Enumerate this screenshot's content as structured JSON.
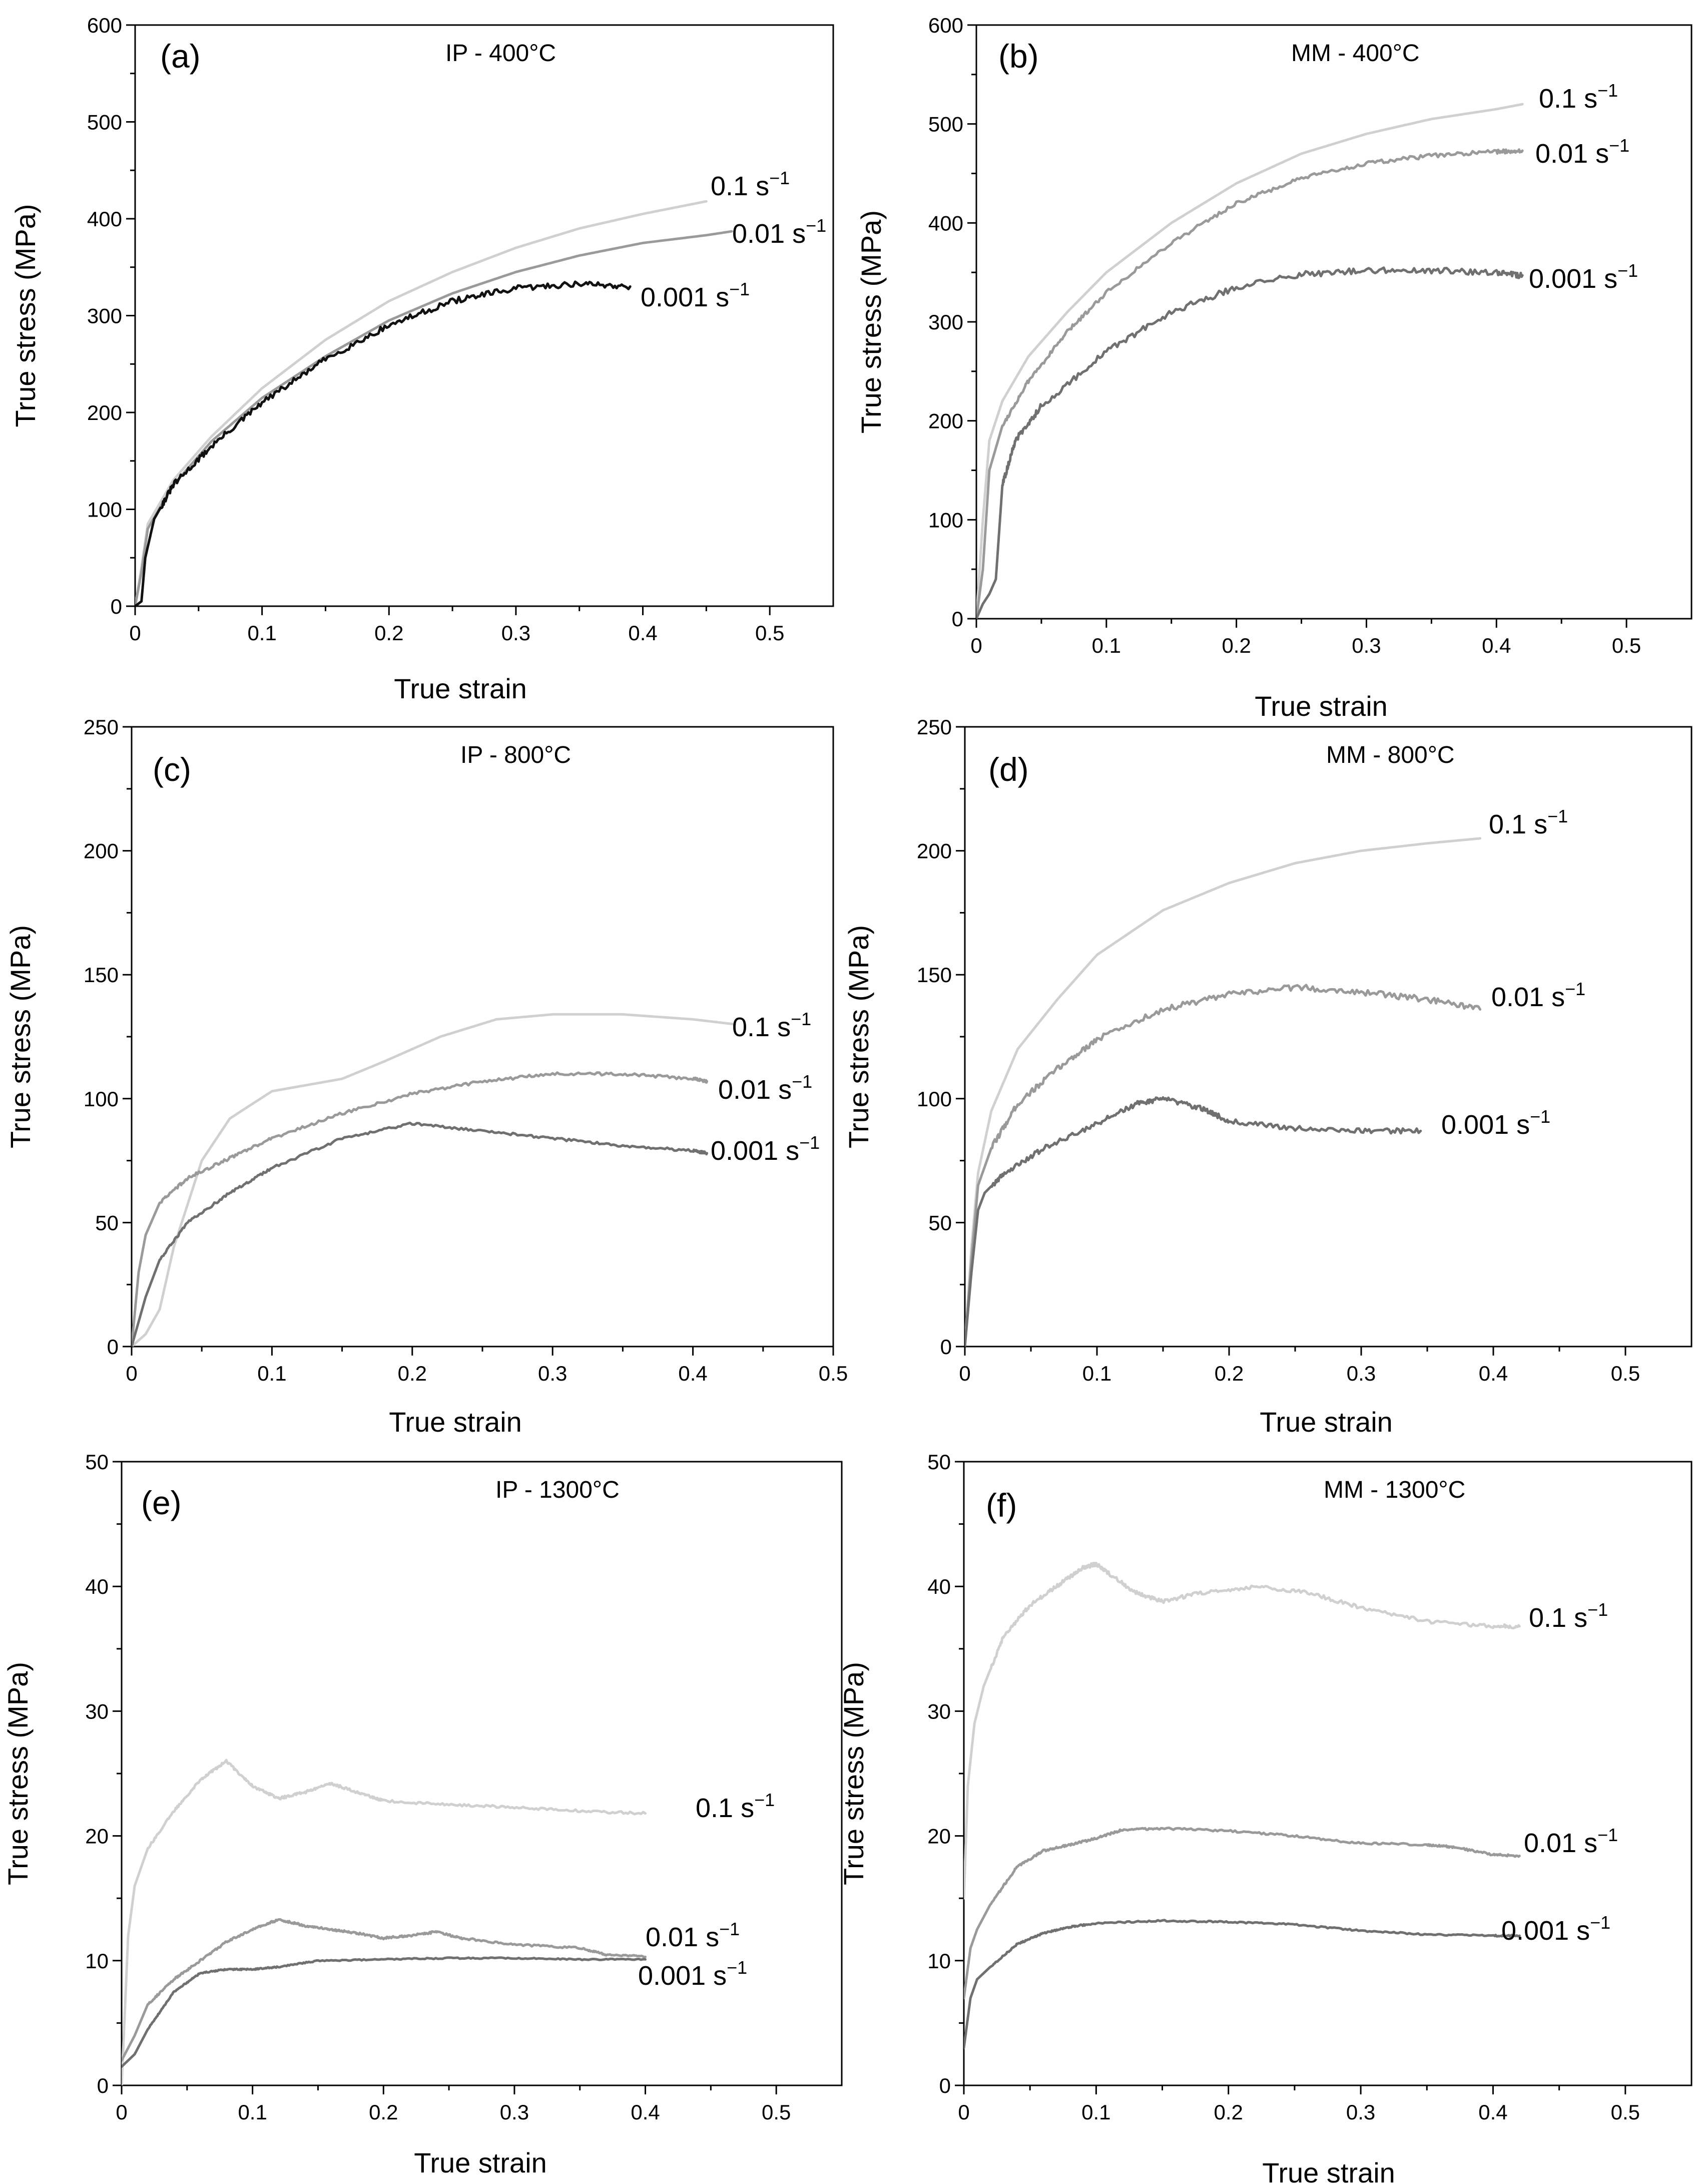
{
  "chart_data": [
    {
      "id": "a",
      "type": "line",
      "panel_label": "(a)",
      "title": "IP - 400°C",
      "xlabel": "True strain",
      "ylabel": "True stress (MPa)",
      "xlim": [
        0,
        0.55
      ],
      "ylim": [
        0,
        600
      ],
      "xticks": [
        0,
        0.1,
        0.2,
        0.3,
        0.4,
        0.5
      ],
      "yticks": [
        0,
        100,
        200,
        300,
        400,
        500,
        600
      ],
      "xtick_labels": [
        "0",
        "0.1",
        "0.2",
        "0.3",
        "0.4",
        "0.5"
      ],
      "ytick_labels": [
        "0",
        "100",
        "200",
        "300",
        "400",
        "500",
        "600"
      ],
      "series": [
        {
          "name": "0.1 s",
          "exp": "−1",
          "color": "#d0d0d0",
          "noise": 0,
          "x": [
            0,
            0.005,
            0.01,
            0.03,
            0.06,
            0.1,
            0.15,
            0.2,
            0.25,
            0.3,
            0.35,
            0.4,
            0.45
          ],
          "y": [
            0,
            40,
            85,
            130,
            175,
            225,
            275,
            315,
            345,
            370,
            390,
            405,
            418
          ]
        },
        {
          "name": "0.01 s",
          "exp": "−1",
          "color": "#9a9a9a",
          "noise": 0,
          "x": [
            0,
            0.005,
            0.01,
            0.03,
            0.06,
            0.1,
            0.15,
            0.2,
            0.25,
            0.3,
            0.35,
            0.4,
            0.45,
            0.47
          ],
          "y": [
            0,
            35,
            80,
            125,
            170,
            215,
            258,
            295,
            323,
            345,
            362,
            375,
            383,
            387
          ]
        },
        {
          "name": "0.001 s",
          "exp": "−1",
          "color": "#111111",
          "noise": 3,
          "x": [
            0,
            0.005,
            0.008,
            0.015,
            0.03,
            0.06,
            0.1,
            0.15,
            0.2,
            0.25,
            0.3,
            0.35,
            0.39
          ],
          "y": [
            0,
            5,
            50,
            90,
            125,
            165,
            210,
            255,
            290,
            315,
            328,
            333,
            330
          ]
        }
      ]
    },
    {
      "id": "b",
      "type": "line",
      "panel_label": "(b)",
      "title": "MM - 400°C",
      "xlabel": "True strain",
      "ylabel": "True stress (MPa)",
      "xlim": [
        0,
        0.55
      ],
      "ylim": [
        0,
        600
      ],
      "xticks": [
        0,
        0.1,
        0.2,
        0.3,
        0.4,
        0.5
      ],
      "yticks": [
        0,
        100,
        200,
        300,
        400,
        500,
        600
      ],
      "xtick_labels": [
        "0",
        "0.1",
        "0.2",
        "0.3",
        "0.4",
        "0.5"
      ],
      "ytick_labels": [
        "0",
        "100",
        "200",
        "300",
        "400",
        "500",
        "600"
      ],
      "series": [
        {
          "name": "0.1 s",
          "exp": "−1",
          "color": "#d0d0d0",
          "noise": 0,
          "x": [
            0,
            0.005,
            0.01,
            0.02,
            0.04,
            0.07,
            0.1,
            0.15,
            0.2,
            0.25,
            0.3,
            0.35,
            0.4,
            0.42
          ],
          "y": [
            0,
            100,
            180,
            220,
            265,
            310,
            350,
            400,
            440,
            470,
            490,
            505,
            515,
            520
          ]
        },
        {
          "name": "0.01 s",
          "exp": "−1",
          "color": "#9a9a9a",
          "noise": 2,
          "x": [
            0,
            0.005,
            0.01,
            0.02,
            0.04,
            0.07,
            0.1,
            0.15,
            0.2,
            0.25,
            0.3,
            0.35,
            0.4,
            0.42
          ],
          "y": [
            0,
            50,
            150,
            195,
            240,
            290,
            330,
            380,
            420,
            445,
            460,
            468,
            472,
            473
          ]
        },
        {
          "name": "0.001 s",
          "exp": "−1",
          "color": "#707070",
          "noise": 3,
          "x": [
            0,
            0.005,
            0.01,
            0.015,
            0.02,
            0.03,
            0.05,
            0.1,
            0.15,
            0.2,
            0.25,
            0.3,
            0.35,
            0.4,
            0.42
          ],
          "y": [
            0,
            15,
            25,
            40,
            135,
            180,
            215,
            270,
            310,
            335,
            348,
            352,
            352,
            350,
            347
          ]
        }
      ]
    },
    {
      "id": "c",
      "type": "line",
      "panel_label": "(c)",
      "title": "IP - 800°C",
      "xlabel": "True strain",
      "ylabel": "True stress (MPa)",
      "xlim": [
        0,
        0.5
      ],
      "ylim": [
        0,
        250
      ],
      "xticks": [
        0,
        0.1,
        0.2,
        0.3,
        0.4,
        0.5
      ],
      "yticks": [
        0,
        50,
        100,
        150,
        200,
        250
      ],
      "xtick_labels": [
        "0",
        "0.1",
        "0.2",
        "0.3",
        "0.4",
        "0.5"
      ],
      "ytick_labels": [
        "0",
        "50",
        "100",
        "150",
        "200",
        "250"
      ],
      "series": [
        {
          "name": "0.1 s",
          "exp": "−1",
          "color": "#d0d0d0",
          "noise": 0,
          "x": [
            0,
            0.01,
            0.02,
            0.03,
            0.05,
            0.07,
            0.1,
            0.13,
            0.15,
            0.18,
            0.22,
            0.26,
            0.3,
            0.35,
            0.4,
            0.43
          ],
          "y": [
            0,
            5,
            15,
            40,
            75,
            92,
            103,
            106,
            108,
            115,
            125,
            132,
            134,
            134,
            132,
            130
          ]
        },
        {
          "name": "0.01 s",
          "exp": "−1",
          "color": "#9a9a9a",
          "noise": 0.6,
          "x": [
            0,
            0.005,
            0.01,
            0.02,
            0.04,
            0.07,
            0.1,
            0.15,
            0.2,
            0.25,
            0.3,
            0.35,
            0.4,
            0.41
          ],
          "y": [
            0,
            30,
            45,
            58,
            68,
            76,
            84,
            94,
            102,
            107,
            110,
            110,
            108,
            107
          ]
        },
        {
          "name": "0.001 s",
          "exp": "−1",
          "color": "#707070",
          "noise": 0.5,
          "x": [
            0,
            0.005,
            0.01,
            0.02,
            0.04,
            0.07,
            0.1,
            0.15,
            0.2,
            0.25,
            0.3,
            0.35,
            0.4,
            0.41
          ],
          "y": [
            0,
            10,
            20,
            35,
            50,
            62,
            72,
            84,
            90,
            87,
            84,
            81,
            79,
            78
          ]
        }
      ]
    },
    {
      "id": "d",
      "type": "line",
      "panel_label": "(d)",
      "title": "MM - 800°C",
      "xlabel": "True strain",
      "ylabel": "True stress (MPa)",
      "xlim": [
        0,
        0.55
      ],
      "ylim": [
        0,
        250
      ],
      "xticks": [
        0,
        0.1,
        0.2,
        0.3,
        0.4,
        0.5
      ],
      "yticks": [
        0,
        50,
        100,
        150,
        200,
        250
      ],
      "xtick_labels": [
        "0",
        "0.1",
        "0.2",
        "0.3",
        "0.4",
        "0.5"
      ],
      "ytick_labels": [
        "0",
        "50",
        "100",
        "150",
        "200",
        "250"
      ],
      "series": [
        {
          "name": "0.1 s",
          "exp": "−1",
          "color": "#d0d0d0",
          "noise": 0,
          "x": [
            0,
            0.005,
            0.01,
            0.02,
            0.04,
            0.07,
            0.1,
            0.15,
            0.2,
            0.25,
            0.3,
            0.35,
            0.39
          ],
          "y": [
            0,
            40,
            70,
            95,
            120,
            140,
            158,
            176,
            187,
            195,
            200,
            203,
            205
          ]
        },
        {
          "name": "0.01 s",
          "exp": "−1",
          "color": "#9a9a9a",
          "noise": 1.2,
          "x": [
            0,
            0.005,
            0.01,
            0.02,
            0.04,
            0.07,
            0.1,
            0.15,
            0.2,
            0.25,
            0.3,
            0.35,
            0.39
          ],
          "y": [
            0,
            35,
            65,
            80,
            98,
            112,
            124,
            136,
            142,
            145,
            143,
            140,
            136
          ]
        },
        {
          "name": "0.001 s",
          "exp": "−1",
          "color": "#707070",
          "noise": 1,
          "x": [
            0,
            0.005,
            0.01,
            0.015,
            0.03,
            0.06,
            0.1,
            0.13,
            0.15,
            0.18,
            0.2,
            0.25,
            0.3,
            0.345
          ],
          "y": [
            0,
            30,
            55,
            62,
            70,
            80,
            90,
            98,
            100,
            96,
            91,
            88,
            87,
            87
          ]
        }
      ]
    },
    {
      "id": "e",
      "type": "line",
      "panel_label": "(e)",
      "title": "IP - 1300°C",
      "xlabel": "True strain",
      "ylabel": "True stress (MPa)",
      "xlim": [
        0,
        0.55
      ],
      "ylim": [
        0,
        50
      ],
      "xticks": [
        0,
        0.1,
        0.2,
        0.3,
        0.4,
        0.5
      ],
      "yticks": [
        0,
        10,
        20,
        30,
        40,
        50
      ],
      "xtick_labels": [
        "0",
        "0.1",
        "0.2",
        "0.3",
        "0.4",
        "0.5"
      ],
      "ytick_labels": [
        "0",
        "10",
        "20",
        "30",
        "40",
        "50"
      ],
      "series": [
        {
          "name": "0.1 s",
          "exp": "−1",
          "color": "#d0d0d0",
          "noise": 0.1,
          "x": [
            0,
            0.005,
            0.01,
            0.02,
            0.04,
            0.06,
            0.08,
            0.1,
            0.12,
            0.14,
            0.16,
            0.18,
            0.2,
            0.25,
            0.3,
            0.35,
            0.4
          ],
          "y": [
            0,
            12,
            16,
            19,
            22,
            24.5,
            26,
            24,
            23,
            23.5,
            24.2,
            23.5,
            22.8,
            22.5,
            22.3,
            22,
            21.8
          ]
        },
        {
          "name": "0.01 s",
          "exp": "−1",
          "color": "#9a9a9a",
          "noise": 0.08,
          "x": [
            0,
            0.01,
            0.02,
            0.04,
            0.06,
            0.08,
            0.1,
            0.12,
            0.14,
            0.16,
            0.18,
            0.2,
            0.22,
            0.24,
            0.26,
            0.3,
            0.35,
            0.37,
            0.4
          ],
          "y": [
            2,
            4,
            6.5,
            8.5,
            10,
            11.5,
            12.5,
            13.3,
            12.8,
            12.5,
            12.2,
            11.8,
            12,
            12.3,
            11.8,
            11.3,
            11.0,
            10.5,
            10.3
          ]
        },
        {
          "name": "0.001 s",
          "exp": "−1",
          "color": "#707070",
          "noise": 0.05,
          "x": [
            0,
            0.01,
            0.02,
            0.04,
            0.06,
            0.08,
            0.1,
            0.12,
            0.15,
            0.2,
            0.25,
            0.3,
            0.35,
            0.4
          ],
          "y": [
            1.5,
            2.5,
            4.5,
            7.5,
            9,
            9.3,
            9.3,
            9.5,
            10,
            10.1,
            10.2,
            10.2,
            10.1,
            10.1
          ]
        }
      ]
    },
    {
      "id": "f",
      "type": "line",
      "panel_label": "(f)",
      "title": "MM - 1300°C",
      "xlabel": "True strain",
      "ylabel": "True stress (MPa)",
      "xlim": [
        0,
        0.55
      ],
      "ylim": [
        0,
        50
      ],
      "xticks": [
        0,
        0.1,
        0.2,
        0.3,
        0.4,
        0.5
      ],
      "yticks": [
        0,
        10,
        20,
        30,
        40,
        50
      ],
      "xtick_labels": [
        "0",
        "0.1",
        "0.2",
        "0.3",
        "0.4",
        "0.5"
      ],
      "ytick_labels": [
        "0",
        "10",
        "20",
        "30",
        "40",
        "50"
      ],
      "series": [
        {
          "name": "0.1 s",
          "exp": "−1",
          "color": "#d0d0d0",
          "noise": 0.15,
          "x": [
            0,
            0.003,
            0.008,
            0.015,
            0.03,
            0.05,
            0.07,
            0.09,
            0.1,
            0.11,
            0.13,
            0.15,
            0.18,
            0.22,
            0.26,
            0.3,
            0.35,
            0.4,
            0.42
          ],
          "y": [
            15,
            24,
            29,
            32,
            36,
            38.5,
            40,
            41.5,
            41.8,
            41,
            39.5,
            38.8,
            39.5,
            40,
            39.5,
            38.3,
            37.2,
            36.8,
            36.8
          ]
        },
        {
          "name": "0.01 s",
          "exp": "−1",
          "color": "#9a9a9a",
          "noise": 0.08,
          "x": [
            0,
            0.005,
            0.01,
            0.02,
            0.04,
            0.06,
            0.08,
            0.1,
            0.12,
            0.15,
            0.2,
            0.25,
            0.3,
            0.35,
            0.37,
            0.4,
            0.42
          ],
          "y": [
            7,
            11,
            12.5,
            14.5,
            17.5,
            18.8,
            19.3,
            19.8,
            20.5,
            20.6,
            20.4,
            20,
            19.4,
            19.3,
            19.1,
            18.5,
            18.4
          ]
        },
        {
          "name": "0.001 s",
          "exp": "−1",
          "color": "#707070",
          "noise": 0.06,
          "x": [
            0,
            0.005,
            0.01,
            0.02,
            0.04,
            0.06,
            0.08,
            0.1,
            0.15,
            0.2,
            0.25,
            0.3,
            0.35,
            0.4,
            0.42
          ],
          "y": [
            3,
            7,
            8.5,
            9.5,
            11.3,
            12.2,
            12.7,
            13,
            13.2,
            13.1,
            12.9,
            12.4,
            12.1,
            12.0,
            12.0
          ]
        }
      ]
    }
  ]
}
